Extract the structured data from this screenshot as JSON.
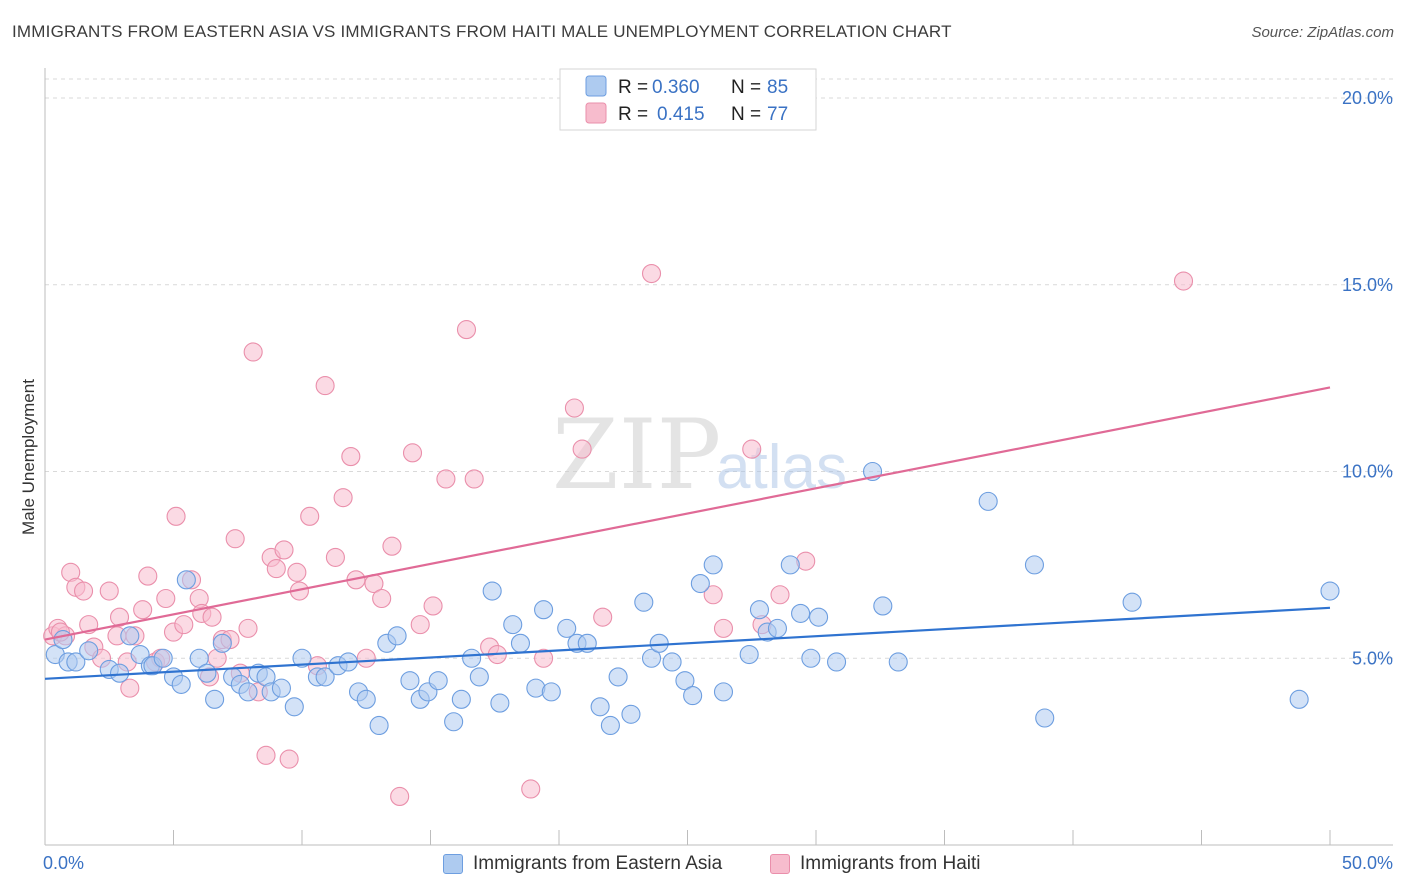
{
  "title": "IMMIGRANTS FROM EASTERN ASIA VS IMMIGRANTS FROM HAITI MALE UNEMPLOYMENT CORRELATION CHART",
  "source": "Source: ZipAtlas.com",
  "watermark": {
    "zip": "ZIP",
    "atlas": "atlas"
  },
  "legend": {
    "rows": [
      {
        "r_label": "R =",
        "r_value": "0.360",
        "n_label": "N =",
        "n_value": "85"
      },
      {
        "r_label": "R =",
        "r_value": "0.415",
        "n_label": "N =",
        "n_value": "77"
      }
    ]
  },
  "bottom_legend": {
    "items": [
      "Immigrants from Eastern Asia",
      "Immigrants from Haiti"
    ]
  },
  "colors": {
    "blue_fill": "#aecbf0",
    "blue_stroke": "#6d9ee0",
    "blue_line": "#2f73d0",
    "pink_fill": "#f7bccd",
    "pink_stroke": "#ea8fab",
    "pink_line": "#e06a96",
    "grid": "#d9d9d9",
    "tick_label": "#3a72c4"
  },
  "chart_data": {
    "type": "scatter",
    "title": "IMMIGRANTS FROM EASTERN ASIA VS IMMIGRANTS FROM HAITI MALE UNEMPLOYMENT CORRELATION CHART",
    "xlabel": "",
    "ylabel": "Male Unemployment",
    "xlim": [
      0,
      50
    ],
    "ylim": [
      0,
      20
    ],
    "x_tick_labels": [
      "0.0%",
      "50.0%"
    ],
    "y_ticks": [
      5,
      10,
      15,
      20
    ],
    "y_tick_labels": [
      "5.0%",
      "10.0%",
      "15.0%",
      "20.0%"
    ],
    "grid": "horizontal dashed",
    "legend_placement": "top-center",
    "series": [
      {
        "name": "Immigrants from Eastern Asia",
        "color": "blue",
        "r": 0.36,
        "n": 85,
        "trend": [
          [
            0,
            4.45
          ],
          [
            50,
            6.35
          ]
        ],
        "points": [
          [
            0.4,
            5.1
          ],
          [
            0.7,
            5.5
          ],
          [
            0.9,
            4.9
          ],
          [
            1.2,
            4.9
          ],
          [
            1.7,
            5.2
          ],
          [
            2.5,
            4.7
          ],
          [
            2.9,
            4.6
          ],
          [
            3.3,
            5.6
          ],
          [
            3.7,
            5.1
          ],
          [
            4.1,
            4.8
          ],
          [
            4.2,
            4.8
          ],
          [
            4.6,
            5.0
          ],
          [
            5.0,
            4.5
          ],
          [
            5.3,
            4.3
          ],
          [
            5.5,
            7.1
          ],
          [
            6.0,
            5.0
          ],
          [
            6.3,
            4.6
          ],
          [
            6.6,
            3.9
          ],
          [
            6.9,
            5.4
          ],
          [
            7.3,
            4.5
          ],
          [
            7.6,
            4.3
          ],
          [
            7.9,
            4.1
          ],
          [
            8.3,
            4.6
          ],
          [
            8.6,
            4.5
          ],
          [
            8.8,
            4.1
          ],
          [
            9.2,
            4.2
          ],
          [
            9.7,
            3.7
          ],
          [
            10.0,
            5.0
          ],
          [
            10.6,
            4.5
          ],
          [
            10.9,
            4.5
          ],
          [
            11.4,
            4.8
          ],
          [
            11.8,
            4.9
          ],
          [
            12.2,
            4.1
          ],
          [
            12.5,
            3.9
          ],
          [
            13.0,
            3.2
          ],
          [
            13.3,
            5.4
          ],
          [
            13.7,
            5.6
          ],
          [
            14.2,
            4.4
          ],
          [
            14.6,
            3.9
          ],
          [
            14.9,
            4.1
          ],
          [
            15.3,
            4.4
          ],
          [
            15.9,
            3.3
          ],
          [
            16.2,
            3.9
          ],
          [
            16.6,
            5.0
          ],
          [
            16.9,
            4.5
          ],
          [
            17.4,
            6.8
          ],
          [
            17.7,
            3.8
          ],
          [
            18.2,
            5.9
          ],
          [
            18.5,
            5.4
          ],
          [
            19.1,
            4.2
          ],
          [
            19.4,
            6.3
          ],
          [
            19.7,
            4.1
          ],
          [
            20.3,
            5.8
          ],
          [
            20.7,
            5.4
          ],
          [
            21.1,
            5.4
          ],
          [
            21.6,
            3.7
          ],
          [
            22.0,
            3.2
          ],
          [
            22.3,
            4.5
          ],
          [
            22.8,
            3.5
          ],
          [
            23.3,
            6.5
          ],
          [
            23.6,
            5.0
          ],
          [
            23.9,
            5.4
          ],
          [
            24.4,
            4.9
          ],
          [
            24.9,
            4.4
          ],
          [
            25.2,
            4.0
          ],
          [
            25.5,
            7.0
          ],
          [
            26.0,
            7.5
          ],
          [
            26.4,
            4.1
          ],
          [
            27.4,
            5.1
          ],
          [
            27.8,
            6.3
          ],
          [
            28.1,
            5.7
          ],
          [
            28.5,
            5.8
          ],
          [
            29.0,
            7.5
          ],
          [
            29.4,
            6.2
          ],
          [
            29.8,
            5.0
          ],
          [
            30.1,
            6.1
          ],
          [
            30.8,
            4.9
          ],
          [
            32.2,
            10.0
          ],
          [
            32.6,
            6.4
          ],
          [
            33.2,
            4.9
          ],
          [
            36.7,
            9.2
          ],
          [
            38.5,
            7.5
          ],
          [
            38.9,
            3.4
          ],
          [
            42.3,
            6.5
          ],
          [
            48.8,
            3.9
          ],
          [
            50.0,
            6.8
          ]
        ]
      },
      {
        "name": "Immigrants from Haiti",
        "color": "pink",
        "r": 0.415,
        "n": 77,
        "trend": [
          [
            0,
            5.5
          ],
          [
            50,
            12.25
          ]
        ],
        "points": [
          [
            0.3,
            5.6
          ],
          [
            0.5,
            5.8
          ],
          [
            0.8,
            5.6
          ],
          [
            1.0,
            7.3
          ],
          [
            1.2,
            6.9
          ],
          [
            1.5,
            6.8
          ],
          [
            1.7,
            5.9
          ],
          [
            1.9,
            5.3
          ],
          [
            2.2,
            5.0
          ],
          [
            2.5,
            6.8
          ],
          [
            2.8,
            5.6
          ],
          [
            2.9,
            6.1
          ],
          [
            3.2,
            4.9
          ],
          [
            3.3,
            4.2
          ],
          [
            3.5,
            5.6
          ],
          [
            3.8,
            6.3
          ],
          [
            4.0,
            7.2
          ],
          [
            4.3,
            4.9
          ],
          [
            4.5,
            5.0
          ],
          [
            4.7,
            6.6
          ],
          [
            5.0,
            5.7
          ],
          [
            5.1,
            8.8
          ],
          [
            5.4,
            5.9
          ],
          [
            5.7,
            7.1
          ],
          [
            6.0,
            6.6
          ],
          [
            6.1,
            6.2
          ],
          [
            6.4,
            4.5
          ],
          [
            6.5,
            6.1
          ],
          [
            6.7,
            5.0
          ],
          [
            6.9,
            5.5
          ],
          [
            7.2,
            5.5
          ],
          [
            7.4,
            8.2
          ],
          [
            7.6,
            4.6
          ],
          [
            7.9,
            5.8
          ],
          [
            8.1,
            13.2
          ],
          [
            8.3,
            4.1
          ],
          [
            8.6,
            2.4
          ],
          [
            8.8,
            7.7
          ],
          [
            9.0,
            7.4
          ],
          [
            9.3,
            7.9
          ],
          [
            9.5,
            2.3
          ],
          [
            9.8,
            7.3
          ],
          [
            9.9,
            6.8
          ],
          [
            10.3,
            8.8
          ],
          [
            10.6,
            4.8
          ],
          [
            10.9,
            12.3
          ],
          [
            11.3,
            7.7
          ],
          [
            11.6,
            9.3
          ],
          [
            11.9,
            10.4
          ],
          [
            12.1,
            7.1
          ],
          [
            12.5,
            5.0
          ],
          [
            12.8,
            7.0
          ],
          [
            13.1,
            6.6
          ],
          [
            13.5,
            8.0
          ],
          [
            13.8,
            1.3
          ],
          [
            14.3,
            10.5
          ],
          [
            14.6,
            5.9
          ],
          [
            15.1,
            6.4
          ],
          [
            15.6,
            9.8
          ],
          [
            16.4,
            13.8
          ],
          [
            16.7,
            9.8
          ],
          [
            17.3,
            5.3
          ],
          [
            17.6,
            5.1
          ],
          [
            18.9,
            1.5
          ],
          [
            19.4,
            5.0
          ],
          [
            20.6,
            11.7
          ],
          [
            20.9,
            10.6
          ],
          [
            21.7,
            6.1
          ],
          [
            23.6,
            15.3
          ],
          [
            26.0,
            6.7
          ],
          [
            26.4,
            5.8
          ],
          [
            27.5,
            10.6
          ],
          [
            27.9,
            5.9
          ],
          [
            28.6,
            6.7
          ],
          [
            29.6,
            7.6
          ],
          [
            44.3,
            15.1
          ],
          [
            0.6,
            5.7
          ]
        ]
      }
    ]
  }
}
